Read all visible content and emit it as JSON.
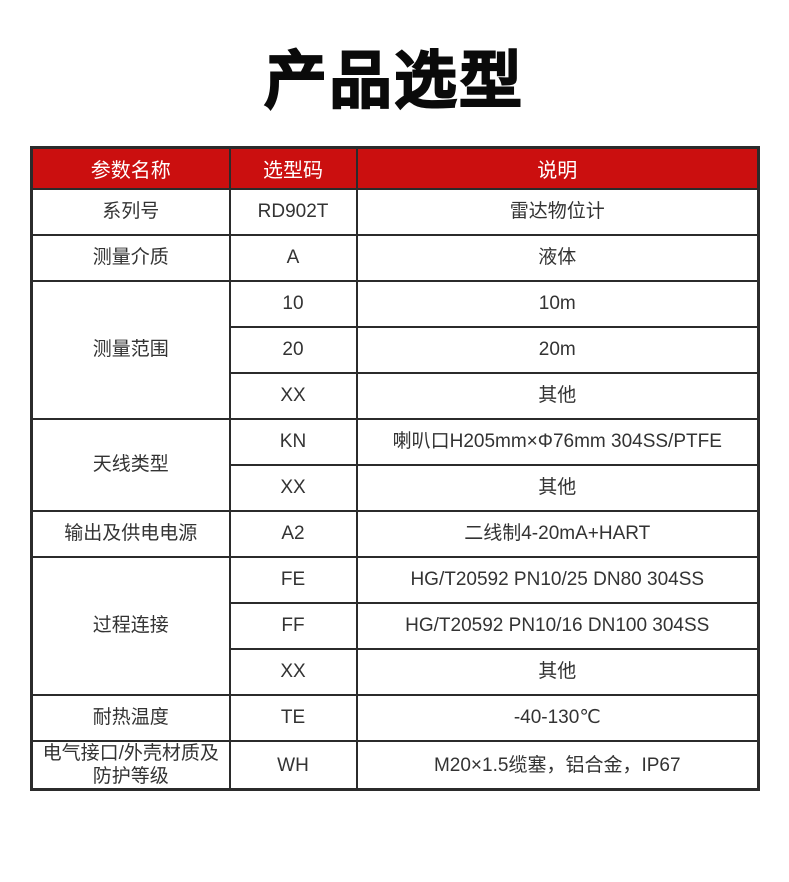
{
  "title": "产品选型",
  "colors": {
    "header_bg": "#CB0F0F",
    "header_text": "#FFFFFF",
    "body_text": "#333333",
    "border": "#2B2B2B",
    "title_color": "#0A0A0A"
  },
  "table": {
    "columns": [
      "参数名称",
      "选型码",
      "说明"
    ],
    "groups": [
      {
        "param": "系列号",
        "rows": [
          {
            "code": "RD902T",
            "desc": "雷达物位计"
          }
        ]
      },
      {
        "param": "测量介质",
        "rows": [
          {
            "code": "A",
            "desc": "液体"
          }
        ]
      },
      {
        "param": "测量范围",
        "rows": [
          {
            "code": "10",
            "desc": "10m"
          },
          {
            "code": "20",
            "desc": "20m"
          },
          {
            "code": "XX",
            "desc": "其他"
          }
        ]
      },
      {
        "param": "天线类型",
        "rows": [
          {
            "code": "KN",
            "desc": "喇叭口H205mm×Φ76mm 304SS/PTFE"
          },
          {
            "code": "XX",
            "desc": "其他"
          }
        ]
      },
      {
        "param": "输出及供电电源",
        "rows": [
          {
            "code": "A2",
            "desc": "二线制4-20mA+HART"
          }
        ]
      },
      {
        "param": "过程连接",
        "rows": [
          {
            "code": "FE",
            "desc": "HG/T20592 PN10/25 DN80 304SS"
          },
          {
            "code": "FF",
            "desc": "HG/T20592 PN10/16 DN100 304SS"
          },
          {
            "code": "XX",
            "desc": "其他"
          }
        ]
      },
      {
        "param": "耐热温度",
        "rows": [
          {
            "code": "TE",
            "desc": "-40-130℃"
          }
        ]
      },
      {
        "param": "电气接口/外壳材质及防护等级",
        "rows": [
          {
            "code": "WH",
            "desc": "M20×1.5缆塞，铝合金，IP67"
          }
        ]
      }
    ]
  }
}
